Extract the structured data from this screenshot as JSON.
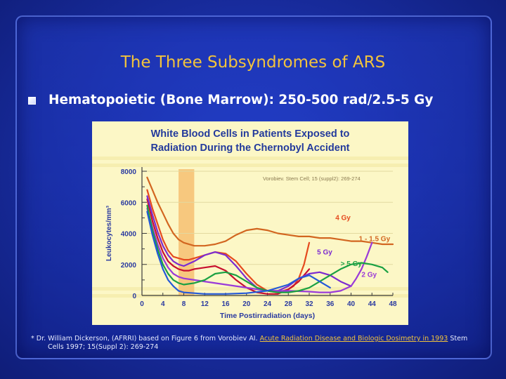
{
  "slide": {
    "title": "The Three Subsyndromes of ARS",
    "bullet": "Hematopoietic (Bone Marrow): 250-500 rad/2.5-5 Gy",
    "footnote": {
      "prefix": "* Dr. William Dickerson, (AFRRI) based on Figure 6 from Vorobiev AI.",
      "link": "Acute Radiation Disease and Biologic Dosimetry in 1993",
      "suffix_line1": "Stem",
      "line2": "Cells 1997; 15(Suppl 2): 269-274"
    }
  },
  "colors": {
    "title": "#f2c33c",
    "chart_bg": "#fcf7c6",
    "chart_title": "#233a9c",
    "highlight_band": "#f6c071",
    "axis_label": "#2a3aa0",
    "series_4gy": "#e54a1e",
    "series_1_1_5gy": "#d26620",
    "series_5gy": "#7c2bd0",
    "series_gt5gy": "#1aa043",
    "series_2gy": "#9a3ad8",
    "series_red": "#c8102e",
    "series_blue": "#2459d8"
  },
  "chart_data": {
    "type": "line",
    "title_line1": "White Blood Cells in Patients Exposed to",
    "title_line2": "Radiation During the Chernobyl Accident",
    "citation": "Vorobiev. Stem Cell; 15 (suppl2): 269-274",
    "xlabel": "Time Postirradiation (days)",
    "ylabel": "Leukocytes/mm³",
    "xlim": [
      0,
      48
    ],
    "ylim": [
      0,
      8000
    ],
    "xticks": [
      0,
      4,
      8,
      12,
      16,
      20,
      24,
      28,
      32,
      36,
      40,
      44,
      48
    ],
    "yticks": [
      0,
      2000,
      4000,
      6000,
      8000
    ],
    "highlight_x": [
      7,
      10
    ],
    "series": [
      {
        "name": "1 - 1.5 Gy",
        "color_key": "series_1_1_5gy",
        "x": [
          1,
          2,
          3,
          4,
          5,
          6,
          7,
          8,
          10,
          12,
          14,
          16,
          18,
          20,
          22,
          24,
          26,
          28,
          30,
          32,
          34,
          36,
          38,
          40,
          42,
          44,
          46,
          48
        ],
        "y": [
          7600,
          6800,
          6000,
          5300,
          4600,
          4000,
          3600,
          3400,
          3200,
          3200,
          3300,
          3500,
          3900,
          4200,
          4300,
          4200,
          4000,
          3900,
          3800,
          3800,
          3700,
          3700,
          3600,
          3500,
          3500,
          3400,
          3300,
          3300
        ]
      },
      {
        "name": "4 Gy",
        "color_key": "series_4gy",
        "x": [
          1,
          2,
          3,
          4,
          5,
          6,
          7,
          8,
          9,
          10,
          12,
          14,
          16,
          18,
          20,
          22,
          24,
          26,
          28,
          29,
          30,
          31,
          32
        ],
        "y": [
          6800,
          5600,
          4600,
          3600,
          2900,
          2500,
          2400,
          2300,
          2300,
          2400,
          2600,
          2800,
          2700,
          2200,
          1400,
          700,
          300,
          200,
          400,
          600,
          1100,
          2000,
          3400
        ]
      },
      {
        "name": "red",
        "color_key": "series_red",
        "x": [
          1,
          2,
          3,
          4,
          5,
          6,
          7,
          8,
          9,
          10,
          12,
          14,
          16,
          18,
          20,
          22,
          24,
          26,
          28,
          30,
          32
        ],
        "y": [
          6200,
          4800,
          3700,
          2800,
          2200,
          1900,
          1700,
          1600,
          1600,
          1700,
          1800,
          1900,
          1600,
          1000,
          500,
          200,
          100,
          100,
          400,
          900,
          1700
        ]
      },
      {
        "name": "5 Gy",
        "color_key": "series_5gy",
        "x": [
          1,
          2,
          3,
          4,
          5,
          6,
          7,
          8,
          10,
          12,
          14,
          16,
          18,
          20,
          22,
          24,
          26,
          28,
          30,
          32,
          34,
          36,
          38,
          40
        ],
        "y": [
          6400,
          5200,
          4100,
          3200,
          2600,
          2200,
          2000,
          1900,
          2200,
          2600,
          2800,
          2600,
          1900,
          1100,
          500,
          300,
          300,
          600,
          1100,
          1400,
          1500,
          1300,
          900,
          600
        ]
      },
      {
        "name": "2 Gy",
        "color_key": "series_2gy",
        "x": [
          1,
          2,
          3,
          4,
          5,
          6,
          7,
          8,
          10,
          12,
          16,
          20,
          24,
          28,
          32,
          34,
          36,
          38,
          40,
          41,
          42,
          43,
          44
        ],
        "y": [
          5600,
          4400,
          3300,
          2400,
          1800,
          1400,
          1200,
          1100,
          1000,
          900,
          700,
          500,
          300,
          300,
          250,
          200,
          200,
          300,
          600,
          1100,
          1700,
          2500,
          3400
        ]
      },
      {
        "name": "> 5 Gy",
        "color_key": "series_gt5gy",
        "x": [
          1,
          2,
          3,
          4,
          5,
          6,
          7,
          8,
          10,
          12,
          14,
          16,
          18,
          20,
          22,
          24,
          26,
          28,
          30,
          32,
          34,
          36,
          38,
          40,
          42,
          44,
          46,
          47
        ],
        "y": [
          5800,
          4200,
          3000,
          2000,
          1400,
          1000,
          800,
          700,
          800,
          1000,
          1400,
          1500,
          1300,
          900,
          500,
          300,
          200,
          200,
          300,
          500,
          900,
          1300,
          1700,
          2000,
          2100,
          2000,
          1800,
          1500
        ]
      },
      {
        "name": "blue",
        "color_key": "series_blue",
        "x": [
          1,
          2,
          3,
          4,
          5,
          6,
          7,
          8,
          10,
          12,
          16,
          20,
          24,
          28,
          30,
          32,
          34,
          36
        ],
        "y": [
          5400,
          3900,
          2700,
          1700,
          1000,
          600,
          300,
          200,
          150,
          100,
          100,
          150,
          300,
          700,
          1100,
          1300,
          900,
          500
        ]
      }
    ],
    "annotations": [
      {
        "text": "4 Gy",
        "x": 37,
        "y": 4850,
        "color_key": "series_4gy"
      },
      {
        "text": "1 - 1.5 Gy",
        "x": 41.5,
        "y": 3500,
        "color_key": "series_1_1_5gy"
      },
      {
        "text": "5 Gy",
        "x": 33.5,
        "y": 2650,
        "color_key": "series_5gy"
      },
      {
        "text": "> 5 Gy",
        "x": 38,
        "y": 1900,
        "color_key": "series_gt5gy"
      },
      {
        "text": "2 Gy",
        "x": 42,
        "y": 1200,
        "color_key": "series_2gy"
      }
    ]
  }
}
